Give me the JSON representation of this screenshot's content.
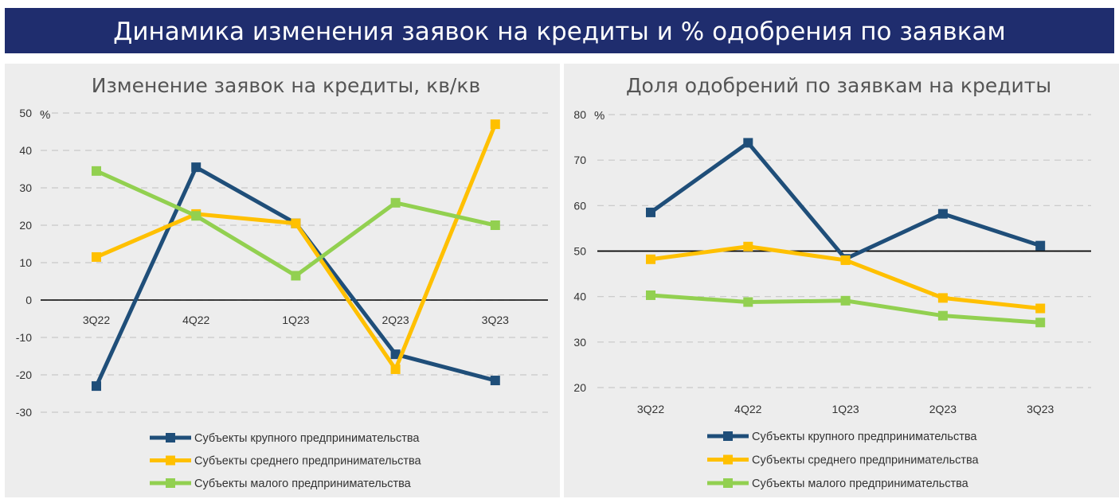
{
  "header": {
    "title": "Динамика изменения заявок на кредиты и % одобрения по заявкам"
  },
  "colors": {
    "large": "#1f4e79",
    "medium": "#ffc000",
    "small": "#92d050",
    "banner": "#1f2d6e",
    "panel": "#ededed"
  },
  "chart_data": [
    {
      "type": "line",
      "title": "Изменение заявок на кредиты, кв/кв",
      "unit": "%",
      "categories": [
        "3Q22",
        "4Q22",
        "1Q23",
        "2Q23",
        "3Q23"
      ],
      "ylim": [
        -30,
        50
      ],
      "yticks": [
        50,
        40,
        30,
        20,
        10,
        0,
        -10,
        -20,
        -30
      ],
      "grid": true,
      "legend_position": "bottom",
      "series": [
        {
          "name": "Субъекты крупного предпринимательства",
          "color": "#1f4e79",
          "values": [
            -23,
            35.5,
            20.5,
            -14.5,
            -21.5
          ]
        },
        {
          "name": "Субъекты среднего предпринимательства",
          "color": "#ffc000",
          "values": [
            11.5,
            23,
            20.5,
            -18.5,
            47
          ]
        },
        {
          "name": "Субъекты малого предпринимательства",
          "color": "#92d050",
          "values": [
            34.5,
            22.5,
            6.5,
            26,
            20
          ]
        }
      ]
    },
    {
      "type": "line",
      "title": "Доля одобрений по заявкам на кредиты",
      "unit": "%",
      "categories": [
        "3Q22",
        "4Q22",
        "1Q23",
        "2Q23",
        "3Q23"
      ],
      "ylim": [
        20,
        80
      ],
      "yticks": [
        80,
        70,
        60,
        50,
        40,
        30,
        20
      ],
      "reference_line": 50,
      "grid": true,
      "legend_position": "bottom",
      "series": [
        {
          "name": "Субъекты крупного предпринимательства",
          "color": "#1f4e79",
          "values": [
            58.5,
            73.8,
            48.3,
            58.2,
            51.2
          ]
        },
        {
          "name": "Субъекты среднего предпринимательства",
          "color": "#ffc000",
          "values": [
            48.2,
            51,
            48,
            39.7,
            37.4
          ]
        },
        {
          "name": "Субъекты малого предпринимательства",
          "color": "#92d050",
          "values": [
            40.3,
            38.8,
            39.1,
            35.8,
            34.3
          ]
        }
      ]
    }
  ]
}
